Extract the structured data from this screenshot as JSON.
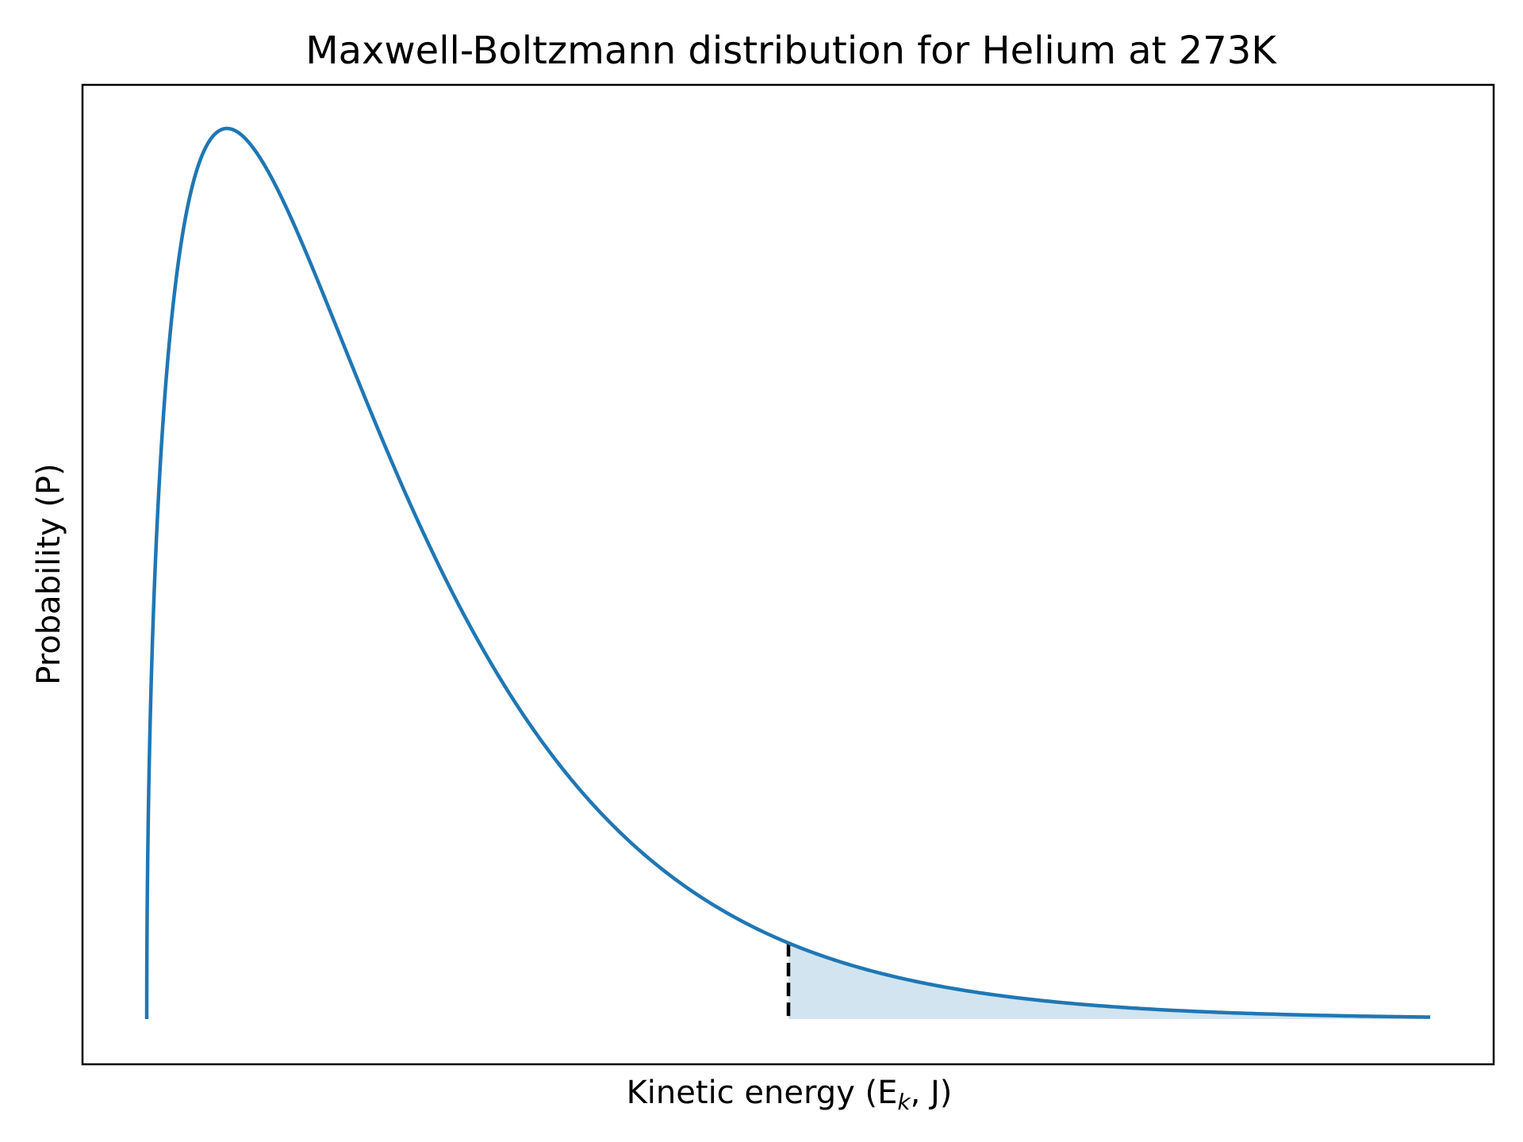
{
  "chart_data": {
    "type": "line",
    "title": "Maxwell-Boltzmann distribution for Helium at 273K",
    "xlabel": {
      "main": "Kinetic energy (E",
      "subscript": "k",
      "tail": ", J)"
    },
    "ylabel": "Probability (P)",
    "x_ticks": [],
    "y_ticks": [],
    "grid": false,
    "series": [
      {
        "name": "",
        "color": "#1f77b4",
        "distribution": "maxwell-boltzmann-energy",
        "x_range": [
          0,
          8
        ],
        "shape_k": 1.5,
        "scale_theta": 1
      }
    ],
    "threshold": {
      "x": 4,
      "line_style": "dashed",
      "line_color": "#000000",
      "fill_color": "#1f77b4",
      "fill_opacity": 0.2
    },
    "ylim": [
      -0.1,
      1.05
    ]
  }
}
